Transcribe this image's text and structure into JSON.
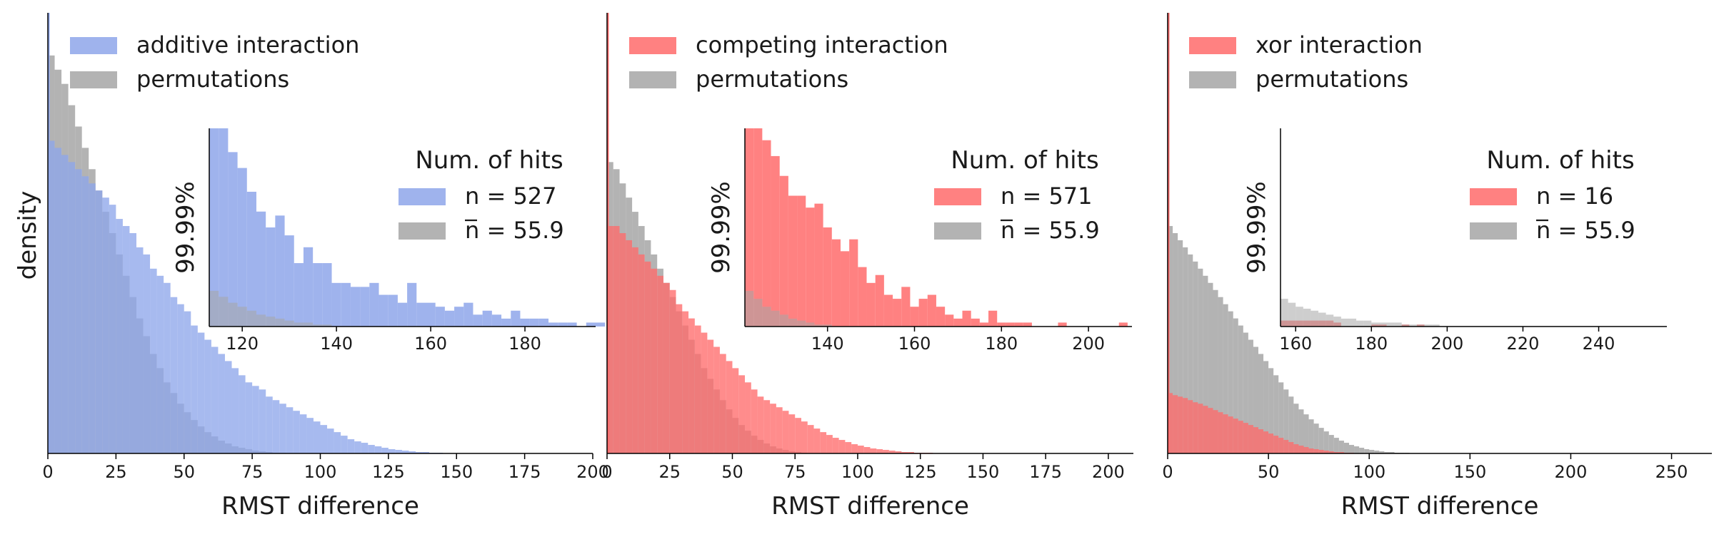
{
  "ylabel": "density",
  "colors": {
    "blue": "#8ea6ea",
    "red": "#ff6b6b",
    "gray": "#a6a6a6"
  },
  "chart_data": [
    {
      "type": "bar",
      "xlabel": "RMST difference",
      "xlim": [
        0,
        200
      ],
      "xticks": [
        0,
        25,
        50,
        75,
        100,
        125,
        150,
        175,
        200
      ],
      "legend": {
        "placement": "top-left",
        "entries": [
          "additive interaction",
          "permutations"
        ]
      },
      "series": [
        {
          "name": "additive interaction",
          "color": "blue",
          "bins": {
            "start": 0,
            "width": 2.5,
            "heights": [
              0.44,
              0.43,
              0.42,
              0.41,
              0.4,
              0.39,
              0.38,
              0.37,
              0.36,
              0.35,
              0.33,
              0.32,
              0.31,
              0.29,
              0.28,
              0.26,
              0.25,
              0.24,
              0.22,
              0.21,
              0.2,
              0.18,
              0.17,
              0.16,
              0.15,
              0.14,
              0.13,
              0.12,
              0.11,
              0.1,
              0.095,
              0.09,
              0.08,
              0.075,
              0.07,
              0.065,
              0.06,
              0.055,
              0.05,
              0.045,
              0.04,
              0.035,
              0.03,
              0.025,
              0.02,
              0.017,
              0.015,
              0.012,
              0.01,
              0.008,
              0.006,
              0.005,
              0.004,
              0.003,
              0.002,
              0.002,
              0.001,
              0.001
            ]
          }
        },
        {
          "name": "permutations",
          "color": "gray",
          "bins": {
            "start": 0,
            "width": 2.5,
            "heights": [
              0.56,
              0.54,
              0.52,
              0.49,
              0.46,
              0.43,
              0.4,
              0.37,
              0.34,
              0.31,
              0.28,
              0.25,
              0.22,
              0.19,
              0.165,
              0.14,
              0.12,
              0.1,
              0.085,
              0.07,
              0.058,
              0.047,
              0.038,
              0.03,
              0.024,
              0.018,
              0.014,
              0.01,
              0.008,
              0.006,
              0.004,
              0.003,
              0.002,
              0.001,
              0.001
            ]
          }
        }
      ],
      "inset": {
        "title": "Num. of hits",
        "ylabel": "99.99%",
        "xlim": [
          113,
          195
        ],
        "xticks": [
          120,
          140,
          160,
          180
        ],
        "legend": [
          {
            "text": "n = 527",
            "color": "blue",
            "mean": false
          },
          {
            "text": "n = 55.9",
            "color": "gray",
            "mean": true
          }
        ],
        "series": [
          {
            "name": "additive interaction",
            "color": "blue",
            "bins": {
              "start": 113,
              "width": 2,
              "heights": [
                100,
                100,
                88,
                80,
                68,
                58,
                50,
                56,
                46,
                32,
                40,
                32,
                32,
                22,
                22,
                20,
                20,
                22,
                16,
                16,
                12,
                22,
                12,
                12,
                10,
                8,
                10,
                12,
                6,
                8,
                6,
                4,
                8,
                4,
                4,
                4,
                2,
                2,
                2,
                0,
                2,
                2
              ]
            }
          },
          {
            "name": "permutations",
            "color": "gray",
            "bins": {
              "start": 113,
              "width": 2,
              "heights": [
                18,
                15,
                12,
                10,
                8,
                6,
                5,
                4,
                3,
                2,
                2,
                1,
                1
              ]
            }
          }
        ]
      }
    },
    {
      "type": "bar",
      "xlabel": "RMST difference",
      "xlim": [
        0,
        210
      ],
      "xticks": [
        0,
        25,
        50,
        75,
        100,
        125,
        150,
        175,
        200
      ],
      "legend": {
        "placement": "top-left",
        "entries": [
          "competing interaction",
          "permutations"
        ]
      },
      "series": [
        {
          "name": "competing interaction",
          "color": "red",
          "bins": {
            "start": 0,
            "width": 2.5,
            "heights": [
              0.32,
              0.32,
              0.31,
              0.3,
              0.29,
              0.28,
              0.27,
              0.26,
              0.25,
              0.24,
              0.23,
              0.21,
              0.2,
              0.19,
              0.18,
              0.17,
              0.16,
              0.15,
              0.14,
              0.13,
              0.12,
              0.11,
              0.1,
              0.09,
              0.08,
              0.075,
              0.07,
              0.065,
              0.06,
              0.055,
              0.05,
              0.045,
              0.04,
              0.035,
              0.03,
              0.026,
              0.022,
              0.019,
              0.016,
              0.013,
              0.011,
              0.009,
              0.007,
              0.006,
              0.005,
              0.004,
              0.003,
              0.002,
              0.002,
              0.001,
              0.001,
              0.001
            ]
          }
        },
        {
          "name": "permutations",
          "color": "gray",
          "bins": {
            "start": 0,
            "width": 2.5,
            "heights": [
              0.41,
              0.4,
              0.38,
              0.36,
              0.34,
              0.32,
              0.3,
              0.28,
              0.26,
              0.24,
              0.22,
              0.2,
              0.18,
              0.16,
              0.14,
              0.12,
              0.105,
              0.09,
              0.075,
              0.062,
              0.05,
              0.04,
              0.032,
              0.025,
              0.019,
              0.014,
              0.01,
              0.007,
              0.005,
              0.003,
              0.002,
              0.001
            ]
          }
        }
      ],
      "inset": {
        "title": "Num. of hits",
        "ylabel": "99.99%",
        "xlim": [
          121,
          210
        ],
        "xticks": [
          140,
          160,
          180,
          200
        ],
        "legend": [
          {
            "text": "n = 571",
            "color": "red",
            "mean": false
          },
          {
            "text": "n = 55.9",
            "color": "gray",
            "mean": true
          }
        ],
        "series": [
          {
            "name": "competing interaction",
            "color": "red",
            "bins": {
              "start": 121,
              "width": 2,
              "heights": [
                100,
                100,
                94,
                86,
                76,
                66,
                66,
                60,
                62,
                50,
                44,
                38,
                44,
                30,
                22,
                26,
                16,
                14,
                20,
                10,
                14,
                16,
                10,
                6,
                4,
                8,
                4,
                2,
                8,
                2,
                2,
                2,
                2,
                0,
                0,
                0,
                2,
                0,
                0,
                0,
                0,
                0,
                0,
                2
              ]
            }
          },
          {
            "name": "permutations",
            "color": "gray",
            "bins": {
              "start": 121,
              "width": 2,
              "heights": [
                18,
                14,
                10,
                8,
                6,
                4,
                3,
                2,
                1,
                1
              ]
            }
          }
        ]
      }
    },
    {
      "type": "bar",
      "xlabel": "RMST difference",
      "xlim": [
        0,
        270
      ],
      "xticks": [
        0,
        50,
        100,
        150,
        200,
        250
      ],
      "legend": {
        "placement": "top-left",
        "entries": [
          "xor interaction",
          "permutations"
        ]
      },
      "series": [
        {
          "name": "xor interaction",
          "color": "red",
          "bins": {
            "start": 0,
            "width": 2.5,
            "heights": [
              0.085,
              0.082,
              0.08,
              0.078,
              0.075,
              0.072,
              0.07,
              0.067,
              0.064,
              0.061,
              0.058,
              0.055,
              0.052,
              0.049,
              0.046,
              0.043,
              0.04,
              0.037,
              0.034,
              0.031,
              0.028,
              0.025,
              0.022,
              0.019,
              0.016,
              0.013,
              0.011,
              0.009,
              0.007,
              0.006,
              0.005,
              0.004,
              0.003,
              0.002,
              0.002,
              0.001,
              0.001
            ]
          }
        },
        {
          "name": "permutations",
          "color": "gray",
          "bins": {
            "start": 0,
            "width": 2.5,
            "heights": [
              0.32,
              0.31,
              0.3,
              0.29,
              0.28,
              0.27,
              0.26,
              0.25,
              0.24,
              0.23,
              0.22,
              0.21,
              0.2,
              0.19,
              0.18,
              0.17,
              0.16,
              0.15,
              0.14,
              0.13,
              0.12,
              0.11,
              0.1,
              0.09,
              0.08,
              0.07,
              0.062,
              0.055,
              0.048,
              0.042,
              0.036,
              0.031,
              0.026,
              0.022,
              0.018,
              0.015,
              0.012,
              0.01,
              0.008,
              0.006,
              0.005,
              0.004,
              0.003,
              0.002,
              0.002,
              0.001,
              0.001,
              0.001
            ]
          }
        }
      ],
      "inset": {
        "title": "Num. of hits",
        "ylabel": "99.99%",
        "xlim": [
          156,
          258
        ],
        "xticks": [
          160,
          180,
          200,
          220,
          240
        ],
        "legend": [
          {
            "text": "n = 16",
            "color": "red",
            "mean": false
          },
          {
            "text": "n = 55.9",
            "color": "gray",
            "mean": true
          }
        ],
        "series": [
          {
            "name": "xor interaction",
            "color": "red",
            "bins": {
              "start": 156,
              "width": 2,
              "heights": [
                3,
                3,
                3,
                3,
                3,
                3,
                3,
                2,
                0,
                0,
                0,
                0,
                1,
                1,
                0,
                0,
                1,
                0,
                1
              ]
            }
          },
          {
            "name": "permutations",
            "color": "gray",
            "bins": {
              "start": 156,
              "width": 2,
              "heights": [
                14,
                12,
                10,
                9,
                8,
                7,
                6,
                5,
                4,
                4,
                3,
                3,
                2,
                2,
                2,
                2,
                1,
                1,
                1,
                1,
                1
              ]
            }
          }
        ]
      }
    }
  ]
}
